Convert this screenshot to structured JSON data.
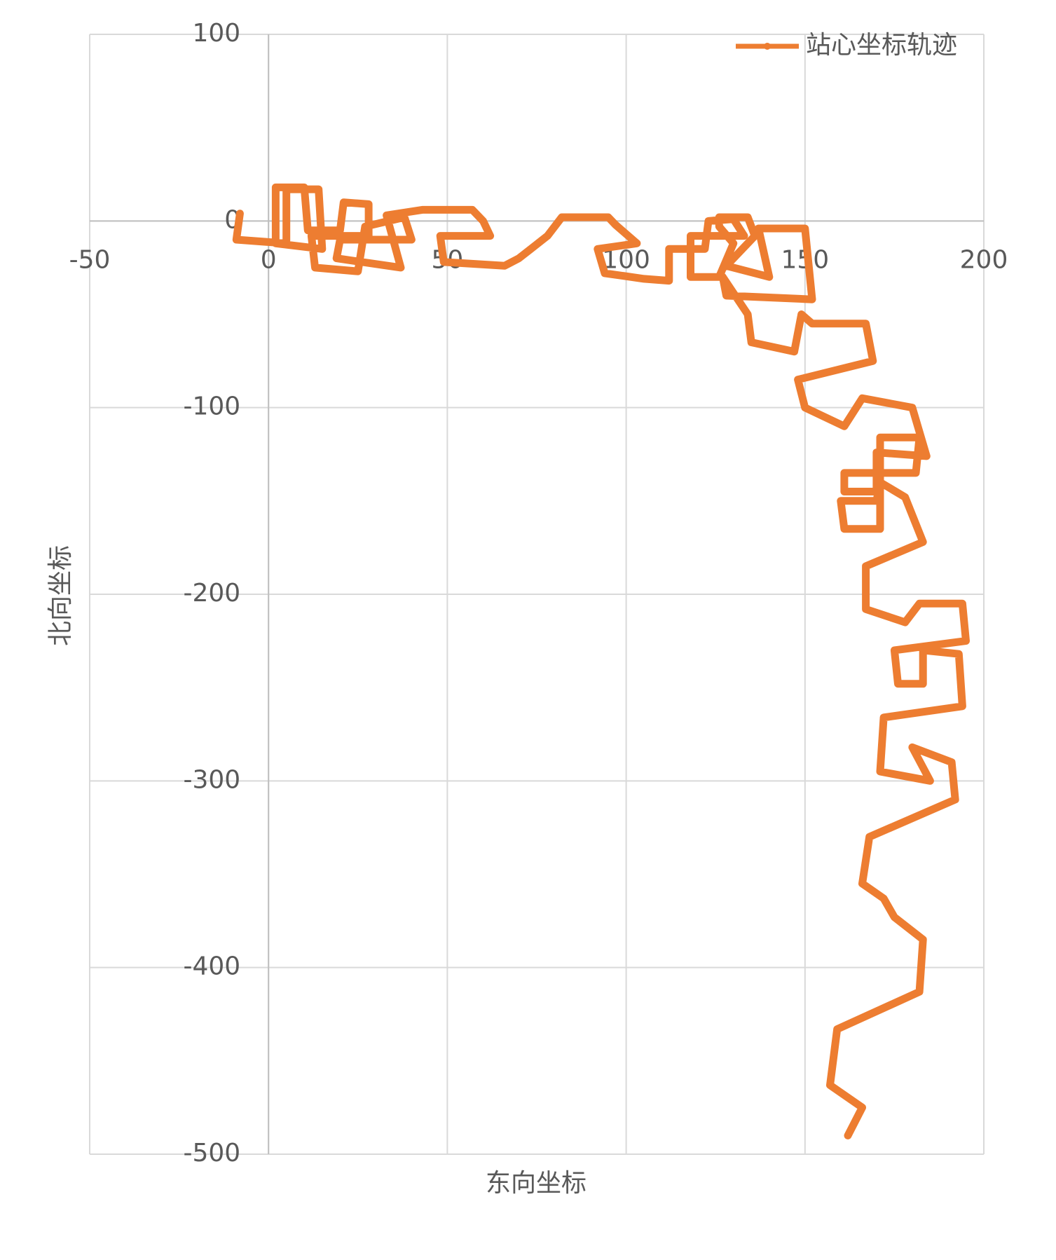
{
  "chart_data": {
    "type": "line",
    "x_label": "东向坐标",
    "y_label": "北向坐标",
    "xlim": [
      -50,
      200
    ],
    "xticks": [
      -50,
      0,
      50,
      100,
      150,
      200
    ],
    "ylim": [
      -500,
      100
    ],
    "yticks": [
      -500,
      -400,
      -300,
      -200,
      -100,
      0,
      100
    ],
    "grid": true,
    "legend": "top-right",
    "x": [
      -8,
      -9,
      5,
      5,
      14,
      15,
      2,
      2,
      10,
      11,
      20,
      21,
      28,
      28,
      12,
      13,
      25,
      27,
      38,
      40,
      20,
      19,
      37,
      33,
      43,
      57,
      60,
      62,
      48,
      49,
      66,
      70,
      78,
      82,
      95,
      97,
      103,
      92,
      94,
      105,
      112,
      112,
      122,
      123,
      130,
      133,
      118,
      118,
      126,
      130,
      126,
      126,
      134,
      136,
      131,
      128,
      140,
      137,
      150,
      152,
      128,
      127,
      134,
      135,
      147,
      149,
      152,
      167,
      169,
      148,
      150,
      161,
      166,
      180,
      184,
      170,
      170,
      161,
      161,
      181,
      182,
      171,
      171,
      161,
      160,
      170,
      171,
      178,
      183,
      167,
      167,
      178,
      182,
      194,
      195,
      175,
      176,
      183,
      183,
      193,
      194,
      172,
      171,
      185,
      180,
      191,
      192,
      168,
      166,
      172,
      175,
      183,
      182,
      159,
      157,
      166,
      162
    ],
    "series": [
      {
        "name": "站心坐标轨迹",
        "color": "#ed7d31",
        "values": [
          4,
          -10,
          -12,
          17,
          17,
          -15,
          -12,
          18,
          18,
          -5,
          -5,
          10,
          9,
          -8,
          -8,
          -25,
          -27,
          -3,
          2,
          -10,
          -10,
          -20,
          -25,
          3,
          6,
          6,
          0,
          -8,
          -8,
          -22,
          -24,
          -20,
          -8,
          2,
          2,
          -2,
          -12,
          -15,
          -28,
          -31,
          -32,
          -15,
          -15,
          0,
          1,
          -8,
          -8,
          -30,
          -30,
          -12,
          -3,
          2,
          2,
          -8,
          -18,
          -24,
          -30,
          -4,
          -4,
          -42,
          -40,
          -30,
          -50,
          -65,
          -70,
          -50,
          -55,
          -55,
          -75,
          -85,
          -100,
          -110,
          -95,
          -100,
          -126,
          -124,
          -145,
          -145,
          -135,
          -135,
          -116,
          -116,
          -165,
          -165,
          -150,
          -150,
          -140,
          -148,
          -172,
          -185,
          -208,
          -215,
          -205,
          -205,
          -225,
          -230,
          -248,
          -248,
          -230,
          -232,
          -260,
          -266,
          -295,
          -300,
          -282,
          -290,
          -310,
          -330,
          -355,
          -363,
          -373,
          -385,
          -413,
          -433,
          -463,
          -475,
          -490
        ]
      }
    ]
  }
}
